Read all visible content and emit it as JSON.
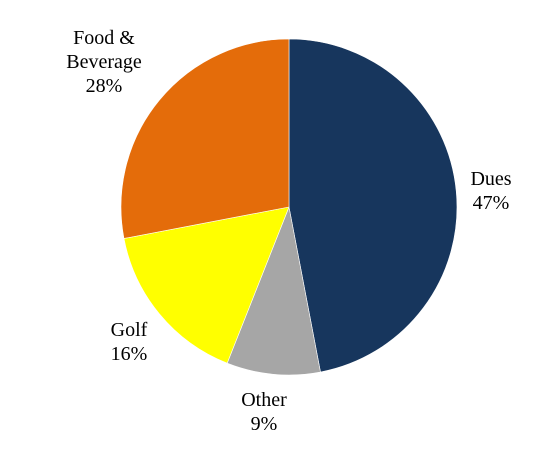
{
  "chart_data": {
    "type": "pie",
    "title": "",
    "slices": [
      {
        "label": [
          "Dues",
          "47%"
        ],
        "value": 47,
        "color": "#17365d"
      },
      {
        "label": [
          "Other",
          "9%"
        ],
        "value": 9,
        "color": "#a6a6a6"
      },
      {
        "label": [
          "Golf",
          "16%"
        ],
        "value": 16,
        "color": "#ffff00"
      },
      {
        "label": [
          "Food &",
          "Beverage",
          "28%"
        ],
        "value": 28,
        "color": "#e46c0a"
      }
    ],
    "start_angle_deg": 0,
    "direction": "clockwise",
    "legend": "none"
  }
}
